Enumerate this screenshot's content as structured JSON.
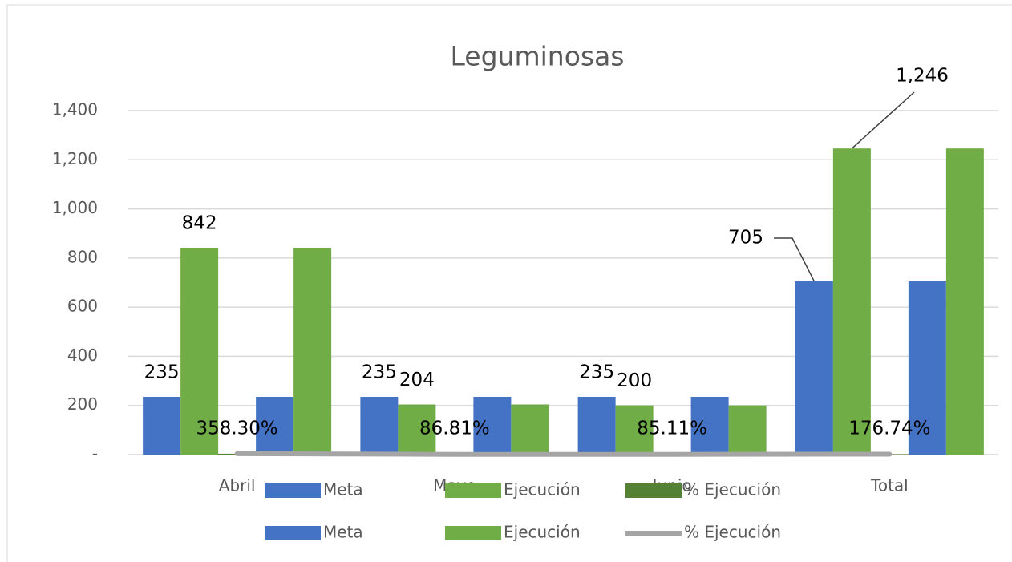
{
  "chart_data": {
    "type": "bar",
    "title": "Leguminosas",
    "categories": [
      "Abril",
      "Mayo",
      "Junio",
      "Total"
    ],
    "ylim": [
      0,
      1400
    ],
    "yticks": [
      {
        "value": 0,
        "label": "-"
      },
      200,
      400,
      600,
      800,
      {
        "value": 1000,
        "label": "1,000"
      },
      {
        "value": 1200,
        "label": "1,200"
      },
      {
        "value": 1400,
        "label": "1,400"
      }
    ],
    "grid": true,
    "legend": "bottom",
    "series": [
      {
        "name": "Meta",
        "color": "#4472c4",
        "type": "bar",
        "data_labels": true,
        "values": [
          235,
          235,
          235,
          705
        ]
      },
      {
        "name": "Ejecución",
        "color": "#70ad47",
        "type": "bar",
        "data_labels": true,
        "values": [
          842,
          204,
          200,
          1246
        ],
        "value_labels": [
          "842",
          "204",
          "200",
          "1,246"
        ]
      },
      {
        "name": "% Ejecución",
        "color": "#548235",
        "type": "bar",
        "data_labels": true,
        "values": [
          3.583,
          0.8681,
          0.8511,
          1.7674
        ],
        "value_labels": [
          "358.30%",
          "86.81%",
          "85.11%",
          "176.74%"
        ]
      },
      {
        "name": "Meta",
        "color": "#4472c4",
        "type": "bar",
        "values": [
          235,
          235,
          235,
          705
        ]
      },
      {
        "name": "Ejecución",
        "color": "#70ad47",
        "type": "bar",
        "values": [
          842,
          204,
          200,
          1246
        ]
      },
      {
        "name": "% Ejecución",
        "color": "#a5a5a5",
        "type": "line",
        "values": [
          3.583,
          0.8681,
          0.8511,
          1.7674
        ]
      }
    ]
  }
}
